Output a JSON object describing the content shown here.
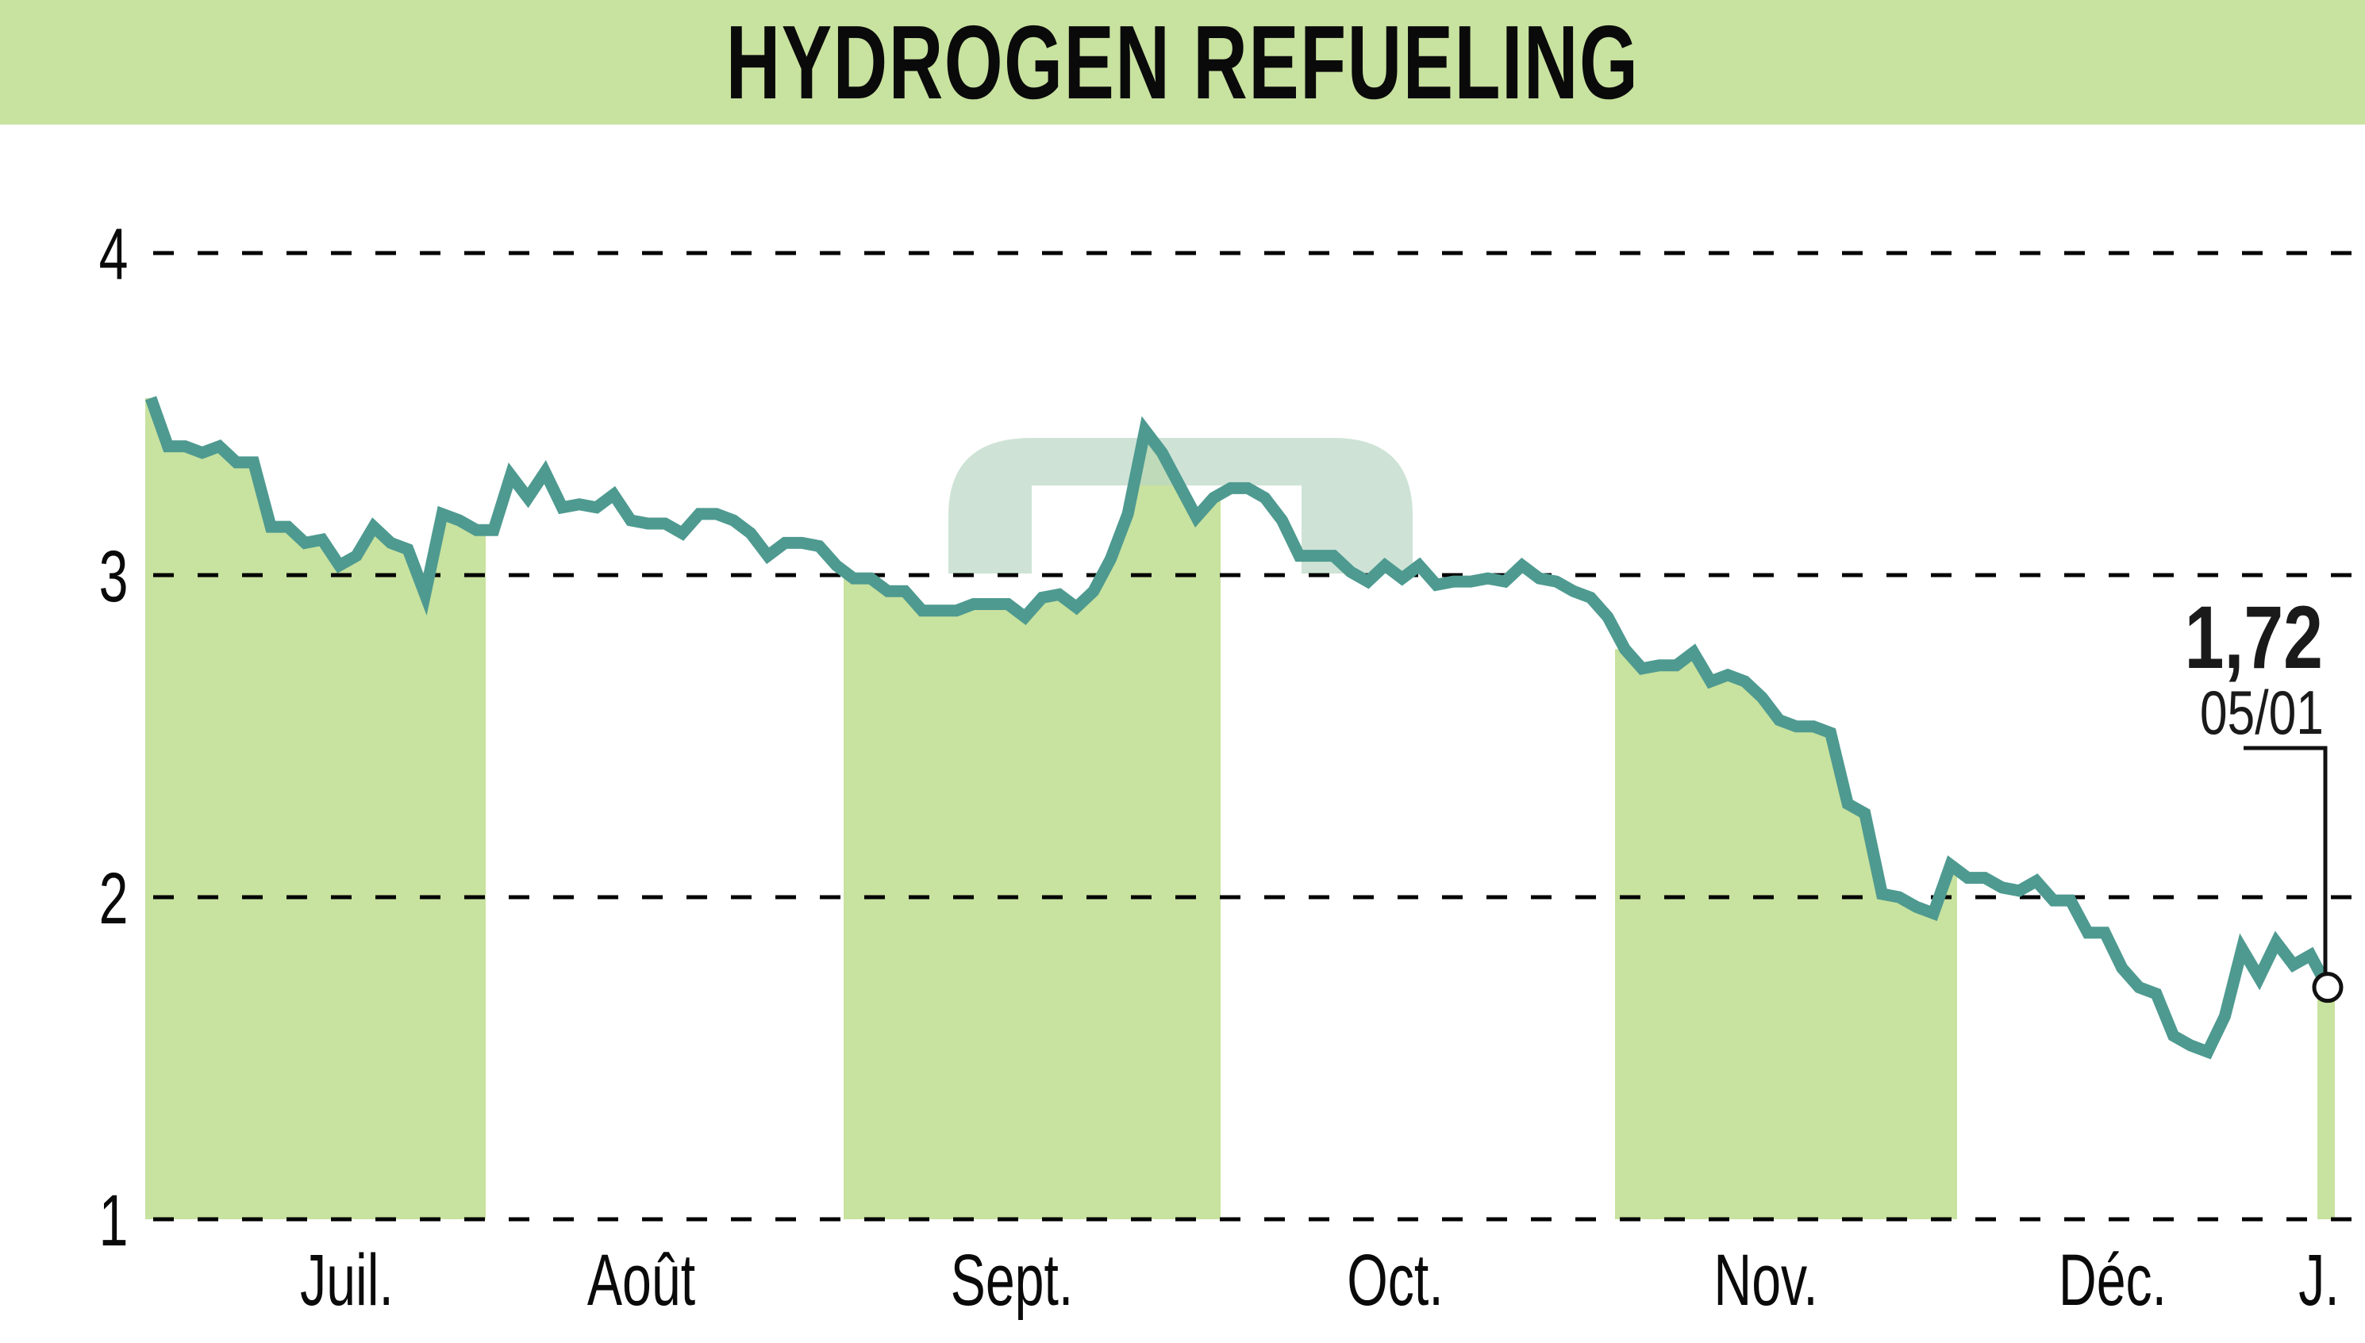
{
  "header": {
    "title": "HYDROGEN REFUELING"
  },
  "colors": {
    "banner": "#c8e29f",
    "band": "#c8e29f",
    "line": "#4e9a90",
    "grid": "#000000",
    "watermark": "#b9d7c4"
  },
  "annotation": {
    "last_value": "1,72",
    "last_date": "05/01"
  },
  "chart_data": {
    "type": "line",
    "title": "HYDROGEN REFUELING",
    "xlabel": "",
    "ylabel": "",
    "ylim": [
      1,
      4
    ],
    "yticks": [
      1,
      2,
      3,
      4
    ],
    "grid": true,
    "x_tick_labels": [
      "Juil.",
      "Août",
      "Sept.",
      "Oct.",
      "Nov.",
      "Déc.",
      "J."
    ],
    "shaded_months": [
      "Juil.",
      "Sept.",
      "Nov.",
      "J."
    ],
    "last_point": {
      "value": 1.72,
      "date": "05/01"
    },
    "series": [
      {
        "name": "HYDROGEN REFUELING",
        "values": [
          3.55,
          3.4,
          3.4,
          3.38,
          3.4,
          3.35,
          3.35,
          3.15,
          3.15,
          3.1,
          3.11,
          3.03,
          3.06,
          3.15,
          3.1,
          3.08,
          2.94,
          3.19,
          3.17,
          3.14,
          3.14,
          3.31,
          3.24,
          3.32,
          3.21,
          3.22,
          3.21,
          3.25,
          3.17,
          3.16,
          3.16,
          3.13,
          3.19,
          3.19,
          3.17,
          3.13,
          3.06,
          3.1,
          3.1,
          3.09,
          3.03,
          2.99,
          2.99,
          2.95,
          2.95,
          2.89,
          2.89,
          2.89,
          2.91,
          2.91,
          2.91,
          2.87,
          2.93,
          2.94,
          2.9,
          2.95,
          3.05,
          3.19,
          3.45,
          3.38,
          3.28,
          3.18,
          3.24,
          3.27,
          3.27,
          3.24,
          3.17,
          3.06,
          3.06,
          3.06,
          3.01,
          2.98,
          3.03,
          2.99,
          3.03,
          2.97,
          2.98,
          2.98,
          2.99,
          2.98,
          3.03,
          2.99,
          2.98,
          2.95,
          2.93,
          2.87,
          2.77,
          2.71,
          2.72,
          2.72,
          2.76,
          2.67,
          2.69,
          2.67,
          2.62,
          2.55,
          2.53,
          2.53,
          2.51,
          2.29,
          2.26,
          2.01,
          2.0,
          1.97,
          1.95,
          2.1,
          2.06,
          2.06,
          2.03,
          2.02,
          2.05,
          1.99,
          1.99,
          1.89,
          1.89,
          1.78,
          1.72,
          1.7,
          1.57,
          1.54,
          1.52,
          1.63,
          1.84,
          1.75,
          1.86,
          1.79,
          1.82,
          1.72
        ]
      }
    ]
  }
}
